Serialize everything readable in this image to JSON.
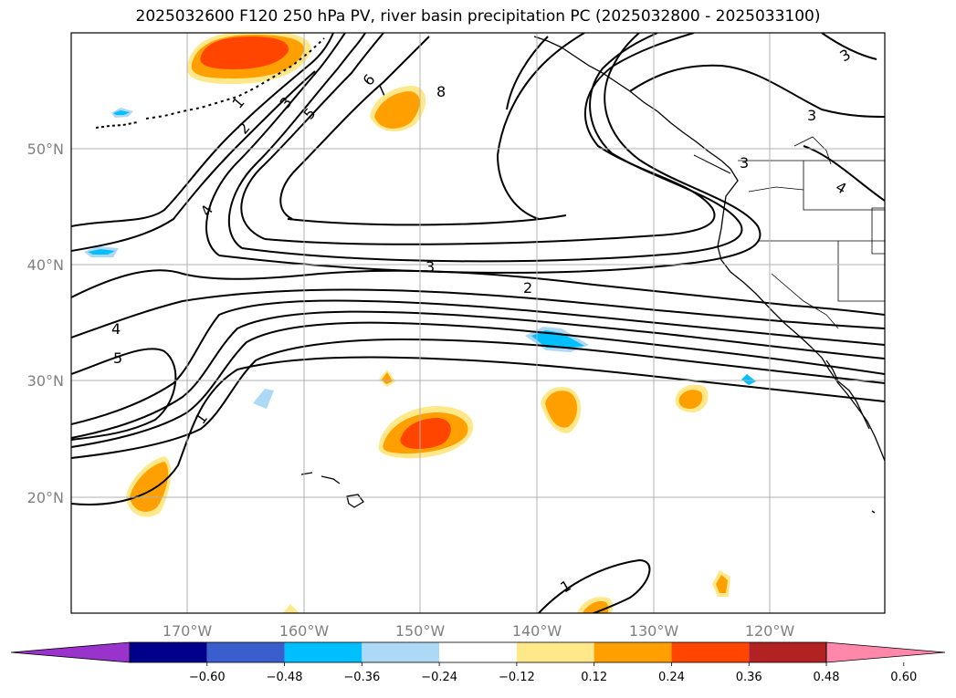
{
  "title": "2025032600 F120 250 hPa PV, river basin precipitation PC (2025032800 - 2025033100)",
  "lon_labels": [
    "170°W",
    "160°W",
    "150°W",
    "140°W",
    "130°W",
    "120°W"
  ],
  "lat_labels": [
    "50°N",
    "40°N",
    "30°N",
    "20°N"
  ],
  "contour_labels": {
    "c1a": "1",
    "c2a": "2",
    "c3a": "3",
    "c4a": "4",
    "c5a": "5",
    "c6": "6",
    "c7": "7",
    "c8": "8",
    "c3b": "3",
    "c2b": "2",
    "c4b": "4",
    "c5b": "5",
    "c1b": "1",
    "c3c": "3",
    "c3d": "3",
    "c3e": "3",
    "c4c": "4",
    "c1c": "1"
  },
  "colorbar": {
    "levels": [
      "−0.60",
      "−0.48",
      "−0.36",
      "−0.24",
      "−0.12",
      "0.12",
      "0.24",
      "0.36",
      "0.48",
      "0.60"
    ],
    "colors": [
      "#9933cc",
      "#00008b",
      "#3a5fcd",
      "#00bfff",
      "#add8f6",
      "#ffffff",
      "#ffe88a",
      "#ffa000",
      "#ff4500",
      "#b22222",
      "#ff88aa"
    ]
  }
}
